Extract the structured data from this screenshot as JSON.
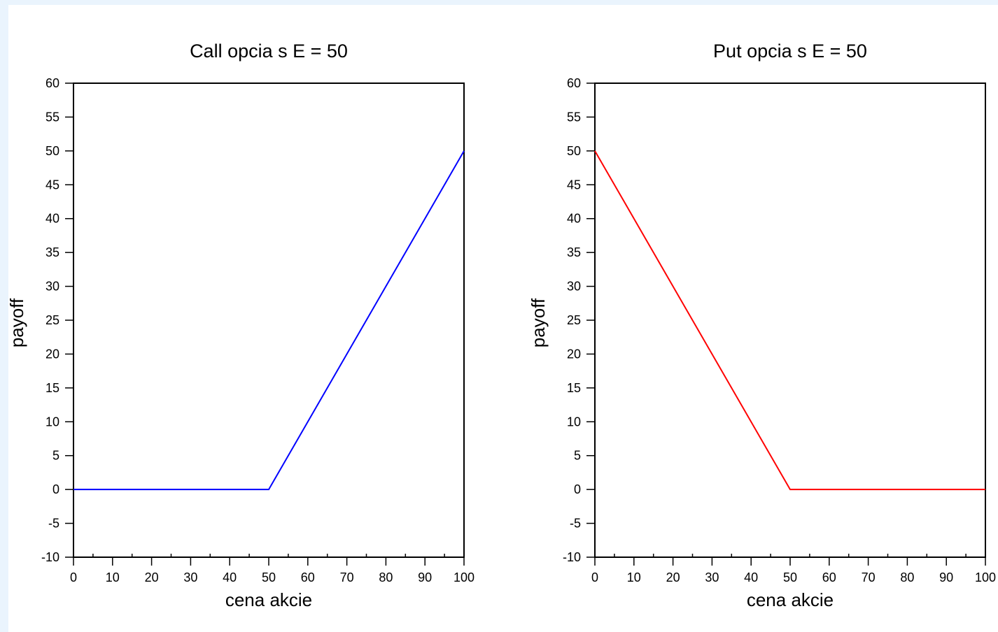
{
  "chart_data": [
    {
      "type": "line",
      "title": "Call opcia s E = 50",
      "xlabel": "cena akcie",
      "ylabel": "payoff",
      "xlim": [
        0,
        100
      ],
      "ylim": [
        -10,
        60
      ],
      "xticks": [
        0,
        10,
        20,
        30,
        40,
        50,
        60,
        70,
        80,
        90,
        100
      ],
      "yticks": [
        -10,
        -5,
        0,
        5,
        10,
        15,
        20,
        25,
        30,
        35,
        40,
        45,
        50,
        55,
        60
      ],
      "grid": false,
      "series": [
        {
          "color": "#0000ff",
          "x": [
            0,
            50,
            100
          ],
          "y": [
            0,
            0,
            50
          ]
        }
      ]
    },
    {
      "type": "line",
      "title": "Put opcia s E = 50",
      "xlabel": "cena akcie",
      "ylabel": "payoff",
      "xlim": [
        0,
        100
      ],
      "ylim": [
        -10,
        60
      ],
      "xticks": [
        0,
        10,
        20,
        30,
        40,
        50,
        60,
        70,
        80,
        90,
        100
      ],
      "yticks": [
        -10,
        -5,
        0,
        5,
        10,
        15,
        20,
        25,
        30,
        35,
        40,
        45,
        50,
        55,
        60
      ],
      "grid": false,
      "series": [
        {
          "color": "#ff0000",
          "x": [
            0,
            50,
            100
          ],
          "y": [
            50,
            0,
            0
          ]
        }
      ]
    }
  ]
}
